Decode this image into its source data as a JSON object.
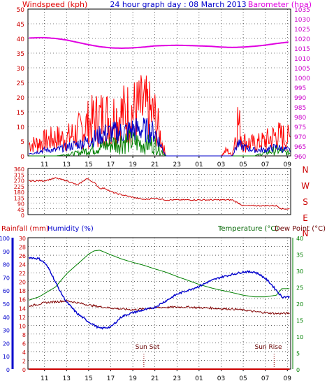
{
  "colors": {
    "wind": "#ff0000",
    "gust_dark": "#0000c8",
    "wind_green": "#008000",
    "barometer": "#e000e0",
    "direction": "#cc0000",
    "humidity": "#0000cc",
    "temperature": "#008000",
    "dewpoint": "#800000",
    "rainfall": "#cc0000",
    "axis_left_blue": "#0000cc",
    "axis_right_green": "#006400",
    "title": "#0000cc",
    "grid": "#000000"
  },
  "header": {
    "left": "Windspeed (kph)",
    "center": "24 hour graph day : 08 March 2013",
    "right": "Barometer (hpa)"
  },
  "lower_header": {
    "rainfall": "Rainfall (mm)",
    "humidity": "Humidity (%)",
    "temperature": "Temperature (°C)",
    "dewpoint": "Dew Point (°C)"
  },
  "annotations": {
    "sunset": "Sun Set",
    "sunrise": "Sun Rise"
  },
  "chart_data": [
    {
      "type": "area",
      "title": "24 hour graph day : 08 March 2013",
      "x_ticks": [
        "11",
        "13",
        "15",
        "17",
        "19",
        "21",
        "23",
        "01",
        "03",
        "05",
        "07",
        "09"
      ],
      "x_range_hours": [
        9.5,
        33.3
      ],
      "left_axis": {
        "label": "Windspeed (kph)",
        "range": [
          0,
          50
        ],
        "ticks": [
          0,
          5,
          10,
          15,
          20,
          25,
          30,
          35,
          40,
          45,
          50
        ]
      },
      "right_axis": {
        "label": "Barometer (hpa)",
        "range": [
          960,
          1035
        ],
        "ticks": [
          960,
          965,
          970,
          975,
          980,
          985,
          990,
          995,
          1000,
          1005,
          1010,
          1015,
          1020,
          1025,
          1030,
          1035
        ]
      },
      "series": [
        {
          "name": "Windspeed (kph)",
          "axis": "left",
          "x": [
            10.0,
            11.0,
            12.0,
            13.0,
            14.0,
            15.0,
            16.0,
            17.0,
            18.0,
            19.0,
            20.0,
            21.0,
            22.0,
            23.0,
            25.0,
            27.0,
            27.5,
            28.0,
            28.5,
            29.0,
            30.0,
            31.0,
            32.0,
            33.0
          ],
          "values": [
            4,
            5,
            6,
            6,
            8,
            11,
            13,
            13,
            14,
            15,
            16,
            13,
            0,
            0,
            0,
            0,
            2,
            0,
            12,
            5,
            4,
            5,
            7,
            6
          ]
        },
        {
          "name": "Gust",
          "axis": "left",
          "x": [
            10.0,
            11.0,
            12.0,
            13.0,
            14.0,
            15.0,
            16.0,
            17.0,
            18.0,
            19.0,
            20.0,
            21.0,
            22.0,
            23.0,
            27.0,
            28.0,
            28.5,
            29.0,
            30.0,
            31.0,
            32.0,
            33.0
          ],
          "values": [
            1,
            2,
            2,
            3,
            4,
            5,
            7,
            8,
            8,
            9,
            9,
            8,
            0,
            0,
            0,
            0,
            4,
            3,
            2,
            2,
            3,
            2
          ]
        },
        {
          "name": "Average",
          "axis": "left",
          "x": [
            10.0,
            12.0,
            14.0,
            15.0,
            16.0,
            17.0,
            18.0,
            19.0,
            20.0,
            21.0,
            22.0,
            30.0,
            31.0,
            32.0,
            33.0
          ],
          "values": [
            0,
            0,
            1,
            2,
            3,
            4,
            5,
            5,
            4,
            4,
            0,
            0,
            1,
            2,
            1
          ]
        },
        {
          "name": "Barometer (hpa)",
          "axis": "right",
          "x": [
            9.6,
            10.5,
            11.0,
            12.0,
            13.0,
            14.0,
            15.0,
            16.0,
            17.0,
            18.0,
            19.0,
            20.0,
            21.0,
            22.0,
            23.0,
            24.0,
            25.0,
            26.0,
            27.0,
            28.0,
            29.0,
            30.0,
            31.0,
            32.0,
            33.2
          ],
          "values": [
            1020.2,
            1020.4,
            1020.4,
            1020.0,
            1019.2,
            1018.0,
            1016.8,
            1015.8,
            1015.2,
            1015.0,
            1015.2,
            1015.6,
            1016.2,
            1016.4,
            1016.5,
            1016.4,
            1016.2,
            1016.0,
            1015.6,
            1015.4,
            1015.6,
            1016.0,
            1016.6,
            1017.4,
            1018.2
          ]
        }
      ]
    },
    {
      "type": "line",
      "x_ticks": [
        "11",
        "13",
        "15",
        "17",
        "19",
        "21",
        "23",
        "01",
        "03",
        "05",
        "07",
        "09"
      ],
      "y_axis": {
        "range": [
          0,
          360
        ],
        "ticks": [
          0,
          45,
          90,
          135,
          180,
          225,
          270,
          315,
          360
        ]
      },
      "compass_labels": [
        "N",
        "W",
        "S",
        "E",
        "N"
      ],
      "series": [
        {
          "name": "Wind Direction",
          "x": [
            9.6,
            11.0,
            12.0,
            13.0,
            14.0,
            14.8,
            15.0,
            15.5,
            16.0,
            16.5,
            17.0,
            17.5,
            18.0,
            19.0,
            20.0,
            21.0,
            22.0,
            23.0,
            25.0,
            27.0,
            28.0,
            29.0,
            30.0,
            31.0,
            32.0,
            32.5,
            33.2
          ],
          "values": [
            262,
            265,
            285,
            265,
            230,
            280,
            275,
            250,
            205,
            205,
            180,
            165,
            155,
            135,
            118,
            128,
            115,
            115,
            115,
            115,
            115,
            70,
            70,
            70,
            70,
            45,
            45
          ]
        }
      ]
    },
    {
      "type": "line",
      "x_ticks": [
        "11",
        "13",
        "15",
        "17",
        "19",
        "21",
        "23",
        "01",
        "03",
        "05",
        "07",
        "09"
      ],
      "left_axes": [
        {
          "label": "Rainfall (mm)",
          "range": [
            0,
            30
          ],
          "ticks": [
            0,
            2,
            4,
            6,
            8,
            10,
            12,
            14,
            16,
            18,
            20,
            22,
            24,
            26,
            28,
            30
          ]
        },
        {
          "label": "Humidity (%)",
          "range": [
            0,
            100
          ],
          "ticks": [
            0,
            10,
            20,
            30,
            40,
            50,
            60,
            70,
            80,
            90,
            100
          ]
        }
      ],
      "right_axis": {
        "label": "Temperature (°C)",
        "range": [
          0,
          40
        ],
        "ticks": [
          0,
          5,
          10,
          15,
          20,
          25,
          30,
          35,
          40
        ]
      },
      "series": [
        {
          "name": "Humidity (%)",
          "axis": "humidity",
          "x": [
            9.6,
            10.5,
            11.0,
            11.5,
            12.0,
            12.5,
            13.0,
            14.0,
            15.0,
            16.0,
            17.0,
            18.0,
            19.0,
            20.0,
            21.0,
            22.0,
            23.0,
            24.0,
            25.0,
            26.0,
            27.0,
            28.0,
            29.0,
            30.0,
            30.5,
            31.0,
            31.5,
            32.5,
            33.2
          ],
          "values": [
            85,
            84,
            81,
            75,
            66,
            58,
            51,
            42,
            36,
            31,
            32,
            40,
            43,
            45,
            47,
            52,
            57,
            60,
            63,
            67,
            70,
            72,
            74,
            74,
            72,
            69,
            65,
            55,
            55
          ]
        },
        {
          "name": "Temperature (°C)",
          "axis": "temperature",
          "x": [
            9.6,
            10.5,
            11.0,
            11.5,
            12.0,
            12.5,
            13.0,
            14.0,
            15.0,
            15.5,
            16.0,
            16.5,
            17.0,
            18.0,
            19.0,
            20.0,
            21.0,
            22.0,
            23.0,
            24.0,
            25.0,
            26.0,
            27.0,
            28.0,
            29.0,
            30.0,
            31.0,
            32.0,
            32.5,
            33.2
          ],
          "values": [
            21,
            22,
            23,
            24,
            25,
            27,
            29,
            32,
            35,
            36,
            36.2,
            35.5,
            34.8,
            33.5,
            32.5,
            31.6,
            30.5,
            29.5,
            28.2,
            27.0,
            25.8,
            24.8,
            24.0,
            23.3,
            22.5,
            22.0,
            22.0,
            22.5,
            24.5,
            24.5
          ]
        },
        {
          "name": "Dew Point (°C)",
          "axis": "temperature",
          "x": [
            9.6,
            10.5,
            11.0,
            12.0,
            13.0,
            14.0,
            15.0,
            16.0,
            17.0,
            18.0,
            19.0,
            20.0,
            21.0,
            22.0,
            23.0,
            24.0,
            25.0,
            26.0,
            27.0,
            28.0,
            29.0,
            30.0,
            31.0,
            32.0,
            33.2
          ],
          "values": [
            19.2,
            19.8,
            20.2,
            20.5,
            20.8,
            20.2,
            19.5,
            19.0,
            18.6,
            18.3,
            18.1,
            18.3,
            18.7,
            18.8,
            18.9,
            18.9,
            18.7,
            18.6,
            18.4,
            18.3,
            18.0,
            17.5,
            17.2,
            16.9,
            17.0
          ]
        },
        {
          "name": "Rainfall (mm)",
          "axis": "rainfall",
          "x": [
            9.6,
            33.2
          ],
          "values": [
            0,
            0
          ]
        }
      ],
      "markers": [
        {
          "label": "Sun Set",
          "x": 20.0
        },
        {
          "label": "Sun Rise",
          "x": 31.8
        }
      ]
    }
  ]
}
